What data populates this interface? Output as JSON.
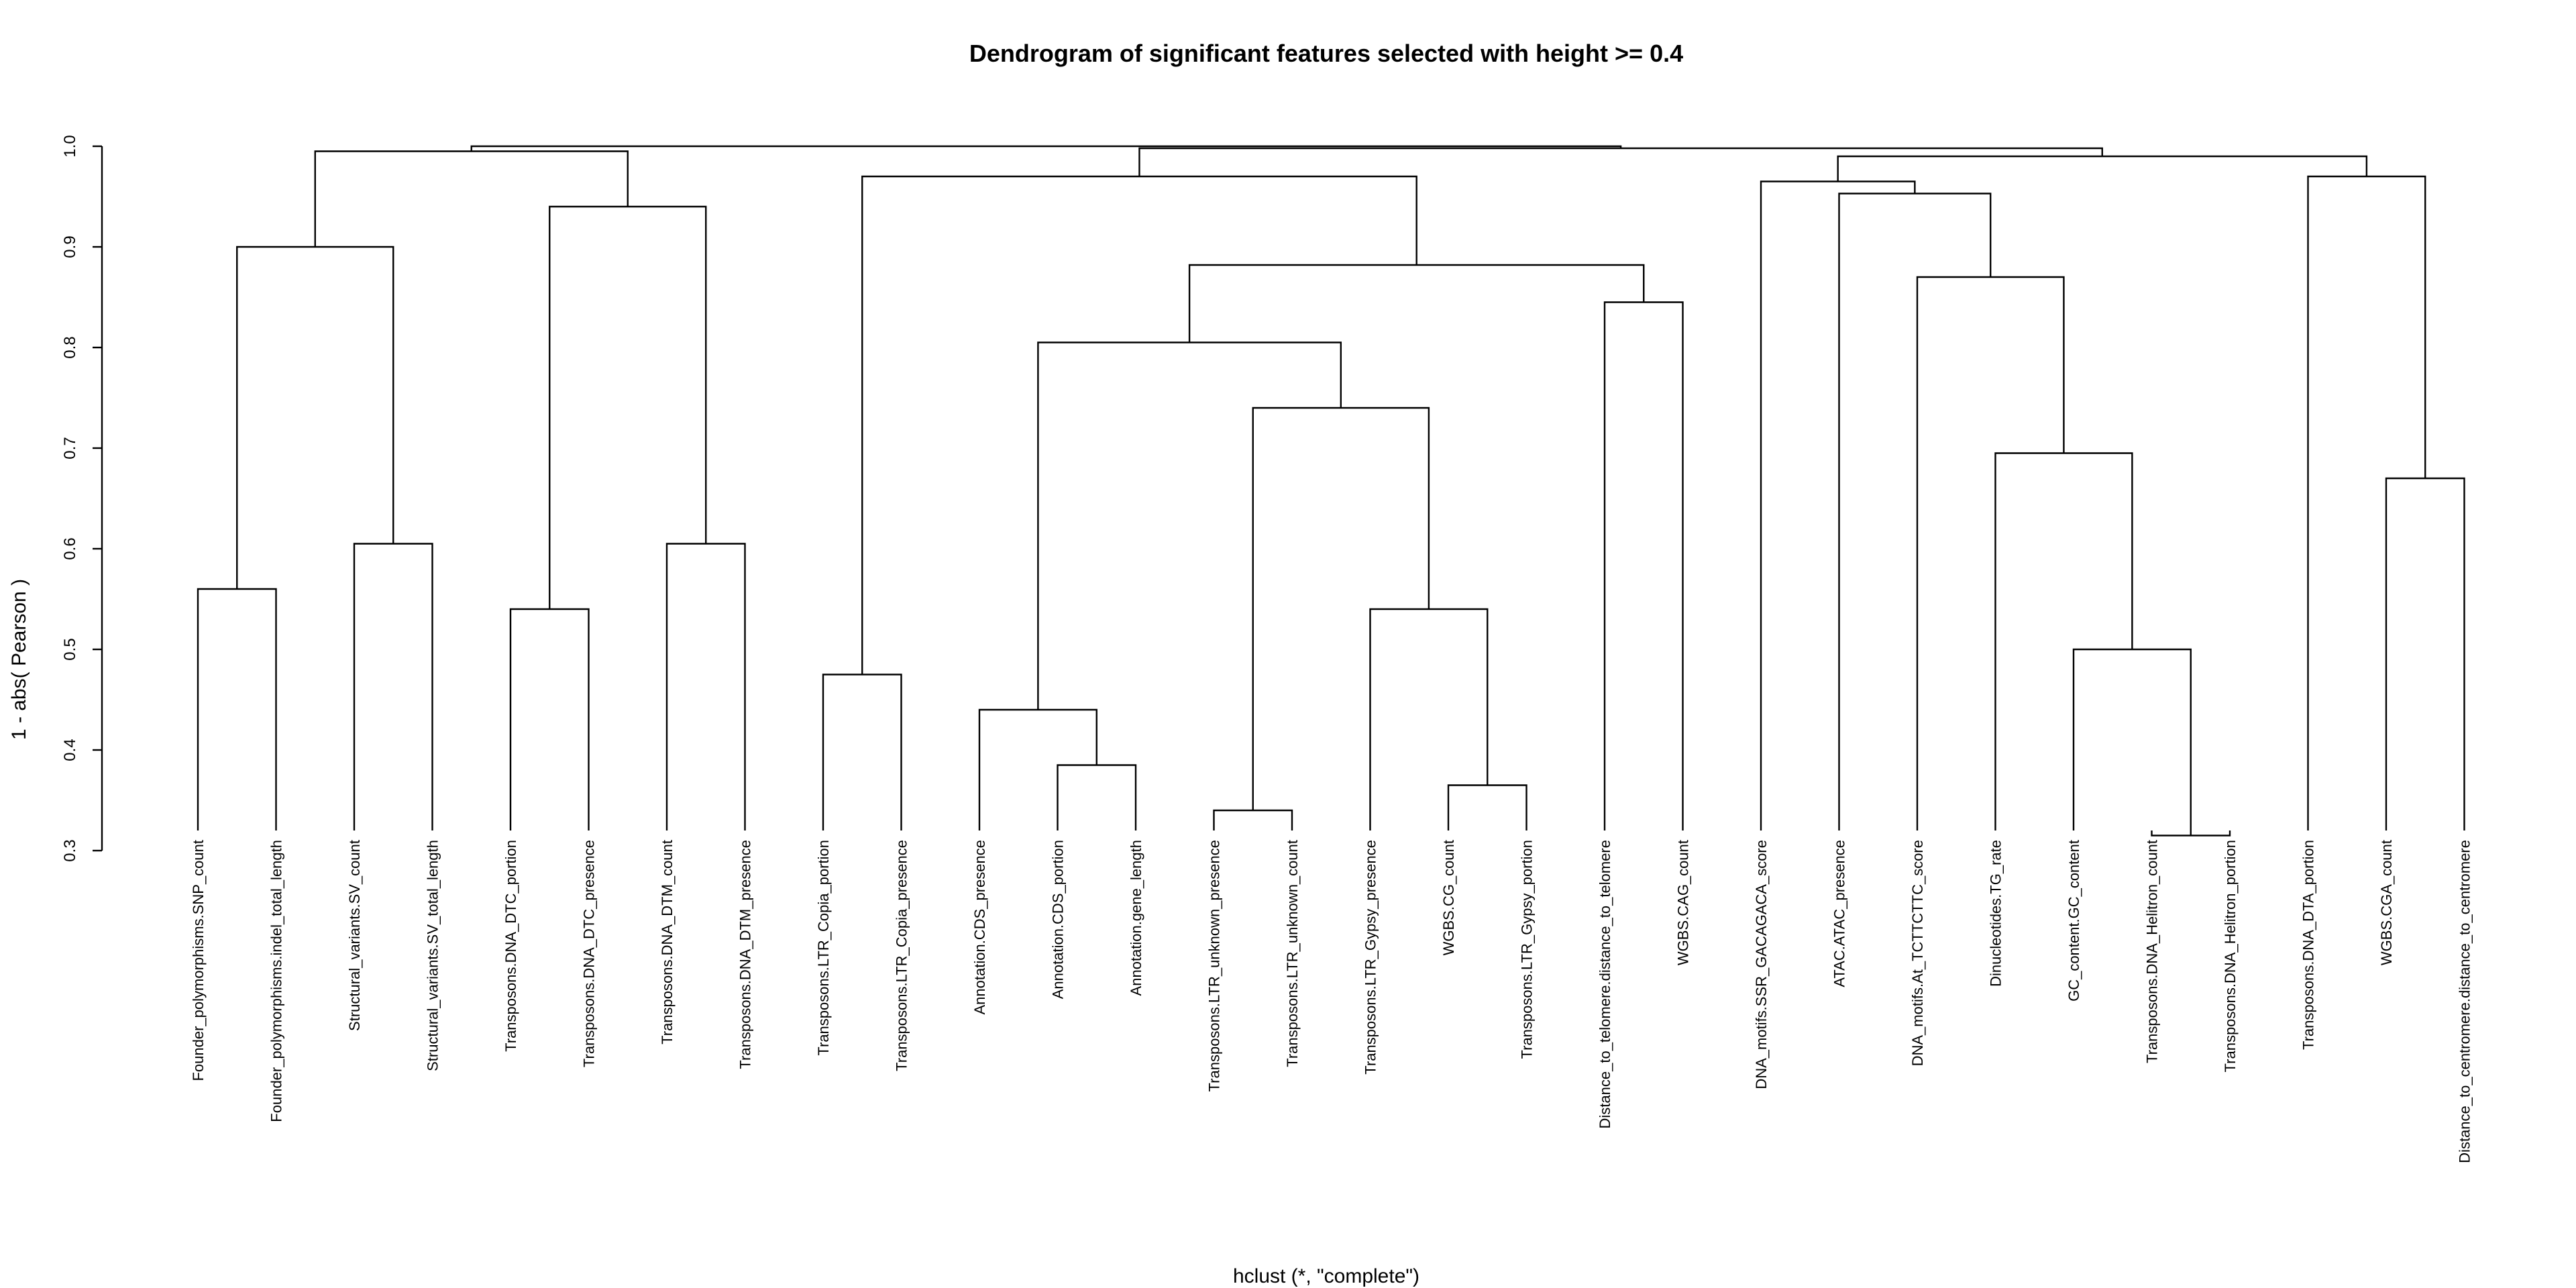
{
  "chart_data": {
    "type": "dendrogram",
    "title": "Dendrogram of significant features selected with height >= 0.4",
    "subtitle": "hclust (*, \"complete\")",
    "ylabel": "1  -  abs( Pearson )",
    "ylim": [
      0.3,
      1.0
    ],
    "yticks": [
      "0.3",
      "0.4",
      "0.5",
      "0.6",
      "0.7",
      "0.8",
      "0.9",
      "1.0"
    ],
    "leaves": [
      "Founder_polymorphisms.SNP_count",
      "Founder_polymorphisms.indel_total_length",
      "Structural_variants.SV_count",
      "Structural_variants.SV_total_length",
      "Transposons.DNA_DTC_portion",
      "Transposons.DNA_DTC_presence",
      "Transposons.DNA_DTM_count",
      "Transposons.DNA_DTM_presence",
      "Transposons.LTR_Copia_portion",
      "Transposons.LTR_Copia_presence",
      "Annotation.CDS_presence",
      "Annotation.CDS_portion",
      "Annotation.gene_length",
      "Transposons.LTR_unknown_presence",
      "Transposons.LTR_unknown_count",
      "Transposons.LTR_Gypsy_presence",
      "WGBS.CG_count",
      "Transposons.LTR_Gypsy_portion",
      "Distance_to_telomere.distance_to_telomere",
      "WGBS.CAG_count",
      "DNA_motifs.SSR_GACAGACA_score",
      "ATAC.ATAC_presence",
      "DNA_motifs.At_TCTTCTTC_score",
      "Dinucleotides.TG_rate",
      "GC_content.GC_content",
      "Transposons.DNA_Helitron_count",
      "Transposons.DNA_Helitron_portion",
      "Transposons.DNA_DTA_portion",
      "WGBS.CGA_count",
      "Distance_to_centromere.distance_to_centromere"
    ],
    "merges": [
      [
        1,
        2,
        0.56
      ],
      [
        3,
        4,
        0.605
      ],
      [
        -1,
        -2,
        0.9
      ],
      [
        5,
        6,
        0.54
      ],
      [
        7,
        8,
        0.605
      ],
      [
        -4,
        -5,
        0.94
      ],
      [
        -3,
        -6,
        0.995
      ],
      [
        9,
        10,
        0.475
      ],
      [
        12,
        13,
        0.385
      ],
      [
        11,
        -9,
        0.44
      ],
      [
        14,
        15,
        0.34
      ],
      [
        17,
        18,
        0.365
      ],
      [
        16,
        -12,
        0.54
      ],
      [
        -11,
        -13,
        0.74
      ],
      [
        -10,
        -14,
        0.805
      ],
      [
        19,
        20,
        0.845
      ],
      [
        -15,
        -16,
        0.882
      ],
      [
        -8,
        -17,
        0.97
      ],
      [
        26,
        27,
        0.315
      ],
      [
        25,
        -19,
        0.5
      ],
      [
        24,
        -20,
        0.695
      ],
      [
        23,
        -21,
        0.87
      ],
      [
        22,
        -22,
        0.953
      ],
      [
        21,
        -23,
        0.965
      ],
      [
        29,
        30,
        0.67
      ],
      [
        28,
        -25,
        0.97
      ],
      [
        -24,
        -26,
        0.99
      ],
      [
        -18,
        -27,
        0.998
      ],
      [
        -7,
        -28,
        1.0
      ]
    ]
  }
}
